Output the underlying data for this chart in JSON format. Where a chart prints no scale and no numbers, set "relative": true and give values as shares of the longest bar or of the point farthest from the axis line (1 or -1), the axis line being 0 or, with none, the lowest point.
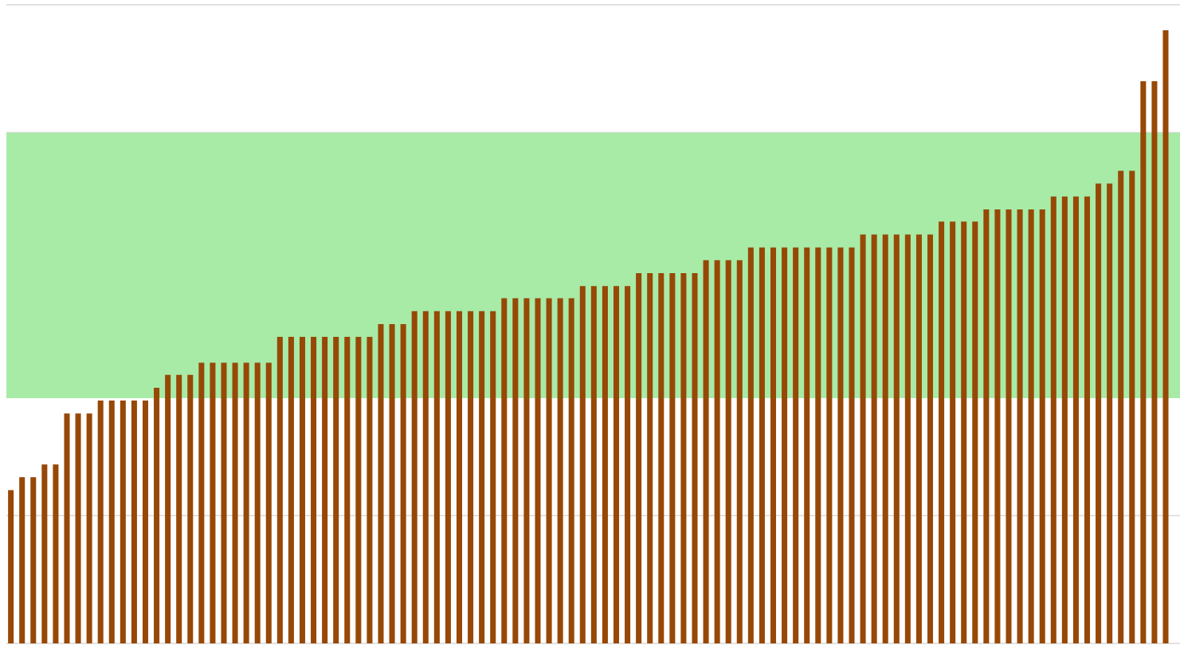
{
  "chart_data": {
    "type": "bar",
    "relative": true,
    "grid": "y",
    "color": "#974806",
    "categories": [
      null,
      null,
      null,
      null,
      null,
      null,
      null,
      null,
      null,
      null,
      null,
      null,
      null,
      null,
      null,
      null,
      null,
      null,
      null,
      null,
      null,
      null,
      null,
      null,
      null,
      null,
      null,
      null,
      null,
      null,
      null,
      null,
      null,
      null,
      null,
      null,
      null,
      null,
      null,
      null,
      null,
      null,
      null,
      null,
      null,
      null,
      null,
      null,
      null,
      null,
      null,
      null,
      null,
      null,
      null,
      null,
      null,
      null,
      null,
      null,
      null,
      null,
      null,
      null,
      null,
      null,
      null,
      null,
      null,
      null,
      null,
      null,
      null,
      null,
      null,
      null,
      null,
      null,
      null,
      null,
      null,
      null,
      null,
      null,
      null,
      null,
      null,
      null,
      null,
      null,
      null,
      null,
      null,
      null,
      null,
      null,
      null,
      null,
      null,
      null,
      null,
      null,
      null,
      null
    ],
    "values": [
      0.25,
      0.271,
      0.271,
      0.292,
      0.292,
      0.375,
      0.375,
      0.375,
      0.396,
      0.396,
      0.396,
      0.396,
      0.396,
      0.417,
      0.438,
      0.438,
      0.438,
      0.458,
      0.458,
      0.458,
      0.458,
      0.458,
      0.458,
      0.458,
      0.5,
      0.5,
      0.5,
      0.5,
      0.5,
      0.5,
      0.5,
      0.5,
      0.5,
      0.521,
      0.521,
      0.521,
      0.542,
      0.542,
      0.542,
      0.542,
      0.542,
      0.542,
      0.542,
      0.542,
      0.563,
      0.563,
      0.563,
      0.563,
      0.563,
      0.563,
      0.563,
      0.583,
      0.583,
      0.583,
      0.583,
      0.583,
      0.604,
      0.604,
      0.604,
      0.604,
      0.604,
      0.604,
      0.625,
      0.625,
      0.625,
      0.625,
      0.646,
      0.646,
      0.646,
      0.646,
      0.646,
      0.646,
      0.646,
      0.646,
      0.646,
      0.646,
      0.667,
      0.667,
      0.667,
      0.667,
      0.667,
      0.667,
      0.667,
      0.688,
      0.688,
      0.688,
      0.688,
      0.708,
      0.708,
      0.708,
      0.708,
      0.708,
      0.708,
      0.729,
      0.729,
      0.729,
      0.729,
      0.75,
      0.75,
      0.771,
      0.771,
      0.917,
      0.917,
      1.0
    ],
    "bands": [
      {
        "axis": "y",
        "from": 0.4,
        "to": 0.833,
        "color": "#a7eba7"
      }
    ]
  }
}
